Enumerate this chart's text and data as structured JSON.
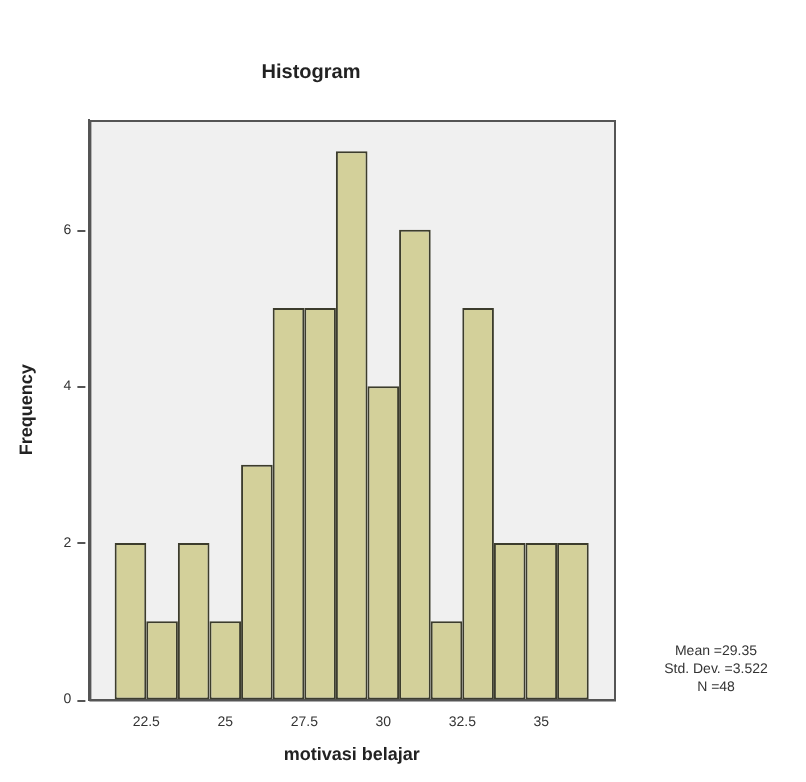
{
  "chart_data": {
    "type": "histogram",
    "title": "Histogram",
    "xlabel": "motivasi belajar",
    "ylabel": "Frequency",
    "bins": [
      21.5,
      22.5,
      23.5,
      24.5,
      25.5,
      26.5,
      27.5,
      28.5,
      29.5,
      30.5,
      31.5,
      32.5,
      33.5,
      34.5,
      35.5,
      36.5
    ],
    "values": [
      2,
      1,
      2,
      1,
      3,
      5,
      5,
      7,
      4,
      6,
      1,
      5,
      2,
      2,
      2
    ],
    "color": "#d3d09a",
    "xlim": [
      20.7,
      37.3
    ],
    "xticks": [
      22.5,
      25,
      27.5,
      30,
      32.5,
      35
    ],
    "ylim": [
      0,
      7.4
    ],
    "yticks": [
      0,
      2,
      4,
      6
    ],
    "grid": false,
    "annotations": [
      "Mean =29.35",
      "Std. Dev. =3.522",
      "N =48"
    ]
  }
}
